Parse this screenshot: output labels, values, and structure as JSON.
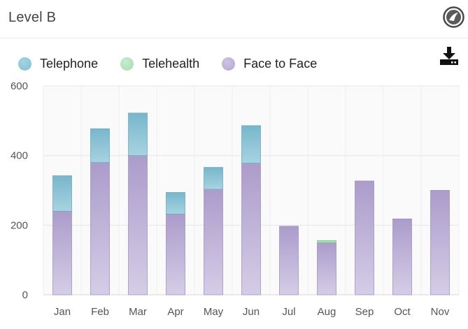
{
  "header": {
    "title": "Level B",
    "logo_icon": "circular-brand-logo-icon"
  },
  "toolbar": {
    "download_icon": "download-icon"
  },
  "legend": [
    {
      "name": "Telephone",
      "color": "#7fbfd3"
    },
    {
      "name": "Telehealth",
      "color": "#a6dcb0"
    },
    {
      "name": "Face to Face",
      "color": "#b4a7d1"
    }
  ],
  "chart_data": {
    "type": "bar",
    "stacked": true,
    "title": "Level B",
    "xlabel": "",
    "ylabel": "",
    "ylim": [
      0,
      600
    ],
    "yticks": [
      0,
      200,
      400,
      600
    ],
    "grid": true,
    "legend_position": "top-left",
    "categories": [
      "Jan",
      "Feb",
      "Mar",
      "Apr",
      "May",
      "Jun",
      "Jul",
      "Aug",
      "Sep",
      "Oct",
      "Nov"
    ],
    "series": [
      {
        "name": "Face to Face",
        "color": "#b4a7d1",
        "values": [
          240,
          380,
          400,
          232,
          303,
          378,
          197,
          150,
          327,
          218,
          300
        ]
      },
      {
        "name": "Telehealth",
        "color": "#a6dcb0",
        "values": [
          0,
          0,
          0,
          0,
          0,
          0,
          0,
          6,
          0,
          0,
          0
        ]
      },
      {
        "name": "Telephone",
        "color": "#7fbfd3",
        "values": [
          102,
          97,
          122,
          62,
          63,
          108,
          0,
          0,
          0,
          0,
          0
        ]
      }
    ]
  }
}
